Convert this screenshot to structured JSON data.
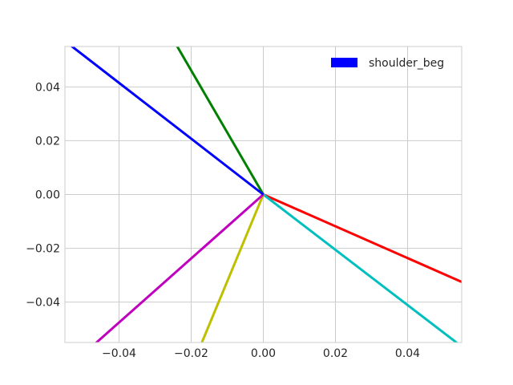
{
  "chart_data": {
    "type": "line",
    "title": "",
    "xlabel": "",
    "ylabel": "",
    "xlim": [
      -0.055,
      0.055
    ],
    "ylim": [
      -0.055,
      0.055
    ],
    "grid": true,
    "legend": {
      "position": "top-right",
      "entries": [
        {
          "label": "shoulder_beg",
          "color": "#0000ff"
        }
      ]
    },
    "x_ticks": [
      {
        "value": -0.04,
        "label": "−0.04"
      },
      {
        "value": -0.02,
        "label": "−0.02"
      },
      {
        "value": 0.0,
        "label": "0.00"
      },
      {
        "value": 0.02,
        "label": "0.02"
      },
      {
        "value": 0.04,
        "label": "0.04"
      }
    ],
    "y_ticks": [
      {
        "value": 0.04,
        "label": "0.04"
      },
      {
        "value": 0.02,
        "label": "0.02"
      },
      {
        "value": 0.0,
        "label": "0.00"
      },
      {
        "value": -0.02,
        "label": "−0.02"
      },
      {
        "value": -0.04,
        "label": "−0.04"
      }
    ],
    "series": [
      {
        "color": "#ff0000",
        "x": [
          0,
          0.055
        ],
        "y": [
          0,
          -0.0325
        ]
      },
      {
        "color": "#00bfbf",
        "x": [
          0,
          0.055
        ],
        "y": [
          0,
          -0.0565
        ]
      },
      {
        "color": "#bfbf00",
        "x": [
          0,
          -0.0175
        ],
        "y": [
          0,
          -0.0565
        ]
      },
      {
        "color": "#bf00bf",
        "x": [
          0,
          -0.0475
        ],
        "y": [
          0,
          -0.0565
        ]
      },
      {
        "color": "#008000",
        "x": [
          0,
          -0.0245
        ],
        "y": [
          0,
          0.0565
        ]
      },
      {
        "color": "#0000ff",
        "x": [
          0,
          -0.0535
        ],
        "y": [
          0,
          0.0555
        ]
      }
    ]
  }
}
